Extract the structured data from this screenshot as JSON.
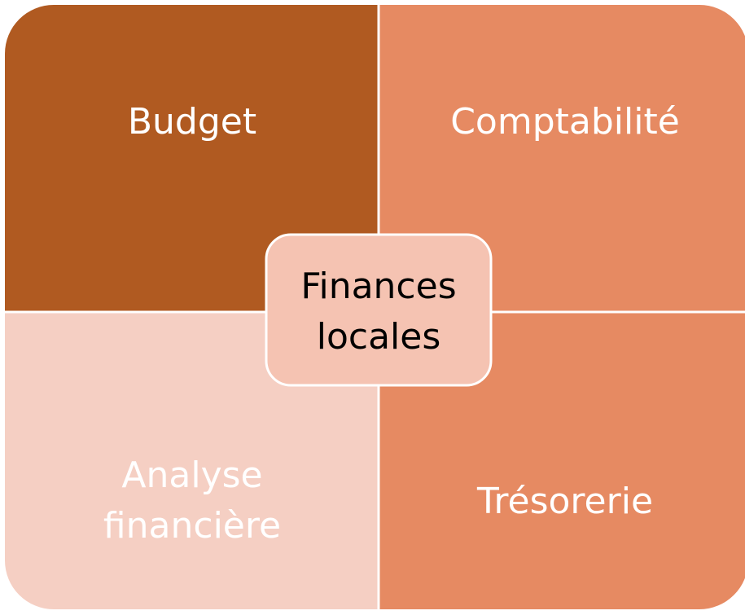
{
  "nodes": [
    {
      "label": "Budget"
    },
    {
      "label": "Comptabilité"
    },
    {
      "label": "Analyse financière"
    },
    {
      "label": "Trésorerie"
    },
    {
      "label": "Finances locales"
    }
  ]
}
